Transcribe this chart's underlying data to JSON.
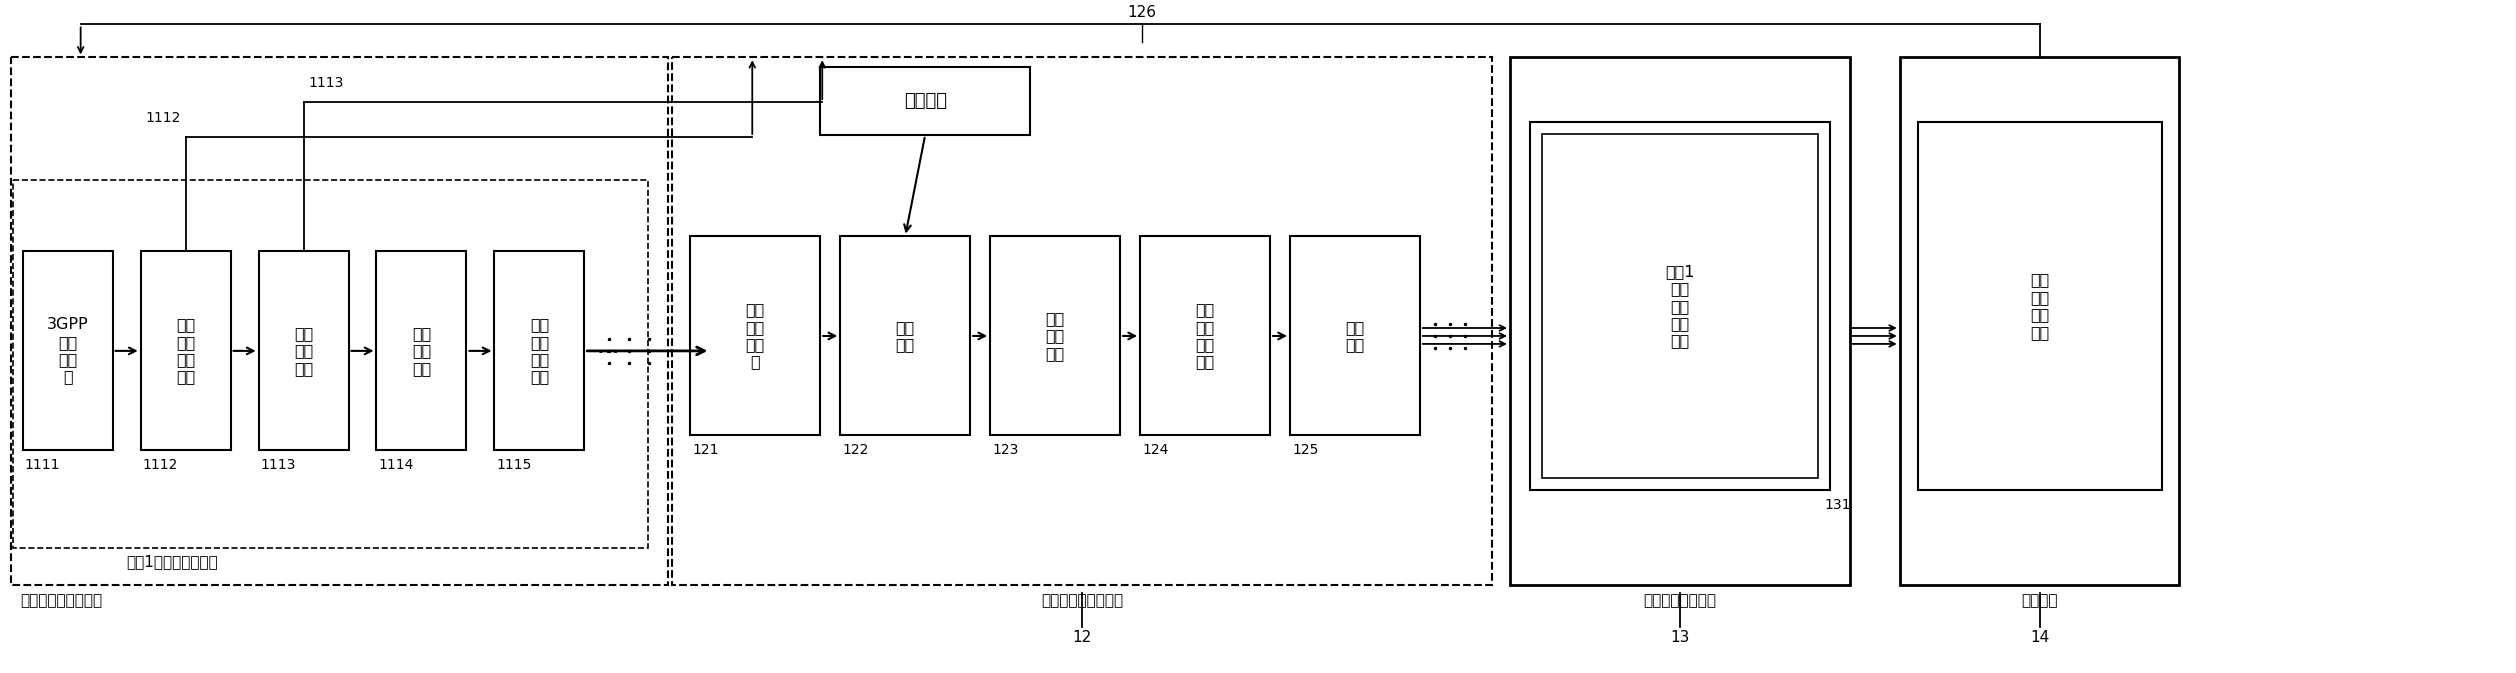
{
  "bg_color": "#ffffff",
  "fig_width": 25.16,
  "fig_height": 6.73,
  "labels": {
    "block_1111": "3GPP\n数据\n源模\n块",
    "block_1112": "码成\n型滤\n波器\n模块",
    "block_1113": "信道\n模型\n模块",
    "block_1114": "阵列\n模型\n模块",
    "block_1115": "码成\n型滤\n波器\n模块",
    "block_121": "多用\n户合\n成模\n块",
    "block_122": "求和\n模块",
    "block_123": "通道\n特性\n模块",
    "block_124": "自动\n增益\n控制\n模块",
    "block_125": "采样\n模块",
    "block_131": "用户1\n空时\n信号\n处理\n模块",
    "block_14": "上行\n链路\n验证\n模块",
    "noise_box": "通道噪声",
    "label_outer": "射频子系统等效模型",
    "label_inner_user": "用户1上行接收数据源",
    "label_mid": "射频子系统等效模型",
    "label_bb": "基带信号处理模块",
    "label_alg": "算法验证",
    "ref_1111": "1111",
    "ref_1112": "1112",
    "ref_1113": "1113",
    "ref_1114": "1114",
    "ref_1115": "1115",
    "ref_121": "121",
    "ref_122": "122",
    "ref_123": "123",
    "ref_124": "124",
    "ref_125": "125",
    "ref_126": "126",
    "ref_131": "131",
    "ref_12": "12",
    "ref_13": "13",
    "ref_14": "14"
  }
}
